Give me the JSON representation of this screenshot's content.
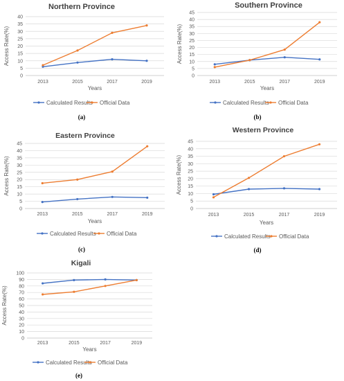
{
  "colors": {
    "calculated": "#4472C4",
    "official": "#ED7D31",
    "grid": "#D9D9D9",
    "axis": "#BFBFBF"
  },
  "chart_data": [
    {
      "type": "line",
      "title": "Northern Province",
      "xlabel": "Years",
      "ylabel": "Access Rate(%)",
      "categories": [
        "2013",
        "2015",
        "2017",
        "2019"
      ],
      "yticks": [
        "0",
        "5",
        "10",
        "15",
        "20",
        "25",
        "30",
        "35",
        "40"
      ],
      "ylim": [
        0,
        40
      ],
      "grid": true,
      "legend": "bottom",
      "series": [
        {
          "name": "Calculated Results",
          "values": [
            6,
            8.8,
            11,
            10
          ]
        },
        {
          "name": "Official Data",
          "values": [
            7,
            17,
            29,
            34
          ]
        }
      ],
      "panel": "(a)"
    },
    {
      "type": "line",
      "title": "Southern Province",
      "xlabel": "Years",
      "ylabel": "Access Rate(%)",
      "categories": [
        "2013",
        "2015",
        "2017",
        "2019"
      ],
      "yticks": [
        "0",
        "5",
        "10",
        "15",
        "20",
        "25",
        "30",
        "35",
        "40",
        "45"
      ],
      "ylim": [
        0,
        45
      ],
      "grid": true,
      "legend": "bottom",
      "series": [
        {
          "name": "Calculated Results",
          "values": [
            8,
            11,
            13,
            11.5
          ]
        },
        {
          "name": "Official Data",
          "values": [
            6,
            11,
            18.5,
            38
          ]
        }
      ],
      "panel": "(b)"
    },
    {
      "type": "line",
      "title": "Eastern Province",
      "xlabel": "Years",
      "ylabel": "Access Rate(%)",
      "categories": [
        "2013",
        "2015",
        "2017",
        "2019"
      ],
      "yticks": [
        "0",
        "5",
        "10",
        "15",
        "20",
        "25",
        "30",
        "35",
        "40",
        "45"
      ],
      "ylim": [
        0,
        45
      ],
      "grid": true,
      "legend": "bottom",
      "series": [
        {
          "name": "Calculated Results",
          "values": [
            4.5,
            6.5,
            8,
            7.5
          ]
        },
        {
          "name": "Official Data",
          "values": [
            17.5,
            20,
            25.5,
            43
          ]
        }
      ],
      "panel": "(c)"
    },
    {
      "type": "line",
      "title": "Western Province",
      "xlabel": "Years",
      "ylabel": "Access Rate(%)",
      "categories": [
        "2013",
        "2015",
        "2017",
        "2019"
      ],
      "yticks": [
        "0",
        "5",
        "10",
        "15",
        "20",
        "25",
        "30",
        "35",
        "40",
        "45"
      ],
      "ylim": [
        0,
        45
      ],
      "grid": true,
      "legend": "bottom",
      "series": [
        {
          "name": "Calculated Results",
          "values": [
            9.5,
            13,
            13.5,
            13
          ]
        },
        {
          "name": "Official Data",
          "values": [
            7.5,
            20.5,
            35,
            43
          ]
        }
      ],
      "panel": "(d)"
    },
    {
      "type": "line",
      "title": "Kigali",
      "xlabel": "Years",
      "ylabel": "Access Rate(%)",
      "categories": [
        "2013",
        "2015",
        "2017",
        "2019"
      ],
      "yticks": [
        "0",
        "10",
        "20",
        "30",
        "40",
        "50",
        "60",
        "70",
        "80",
        "90",
        "100"
      ],
      "ylim": [
        0,
        100
      ],
      "grid": true,
      "legend": "bottom",
      "series": [
        {
          "name": "Calculated Results",
          "values": [
            84,
            89,
            90,
            89
          ]
        },
        {
          "name": "Official Data",
          "values": [
            67,
            71,
            80,
            89
          ]
        }
      ],
      "panel": "(e)"
    }
  ]
}
